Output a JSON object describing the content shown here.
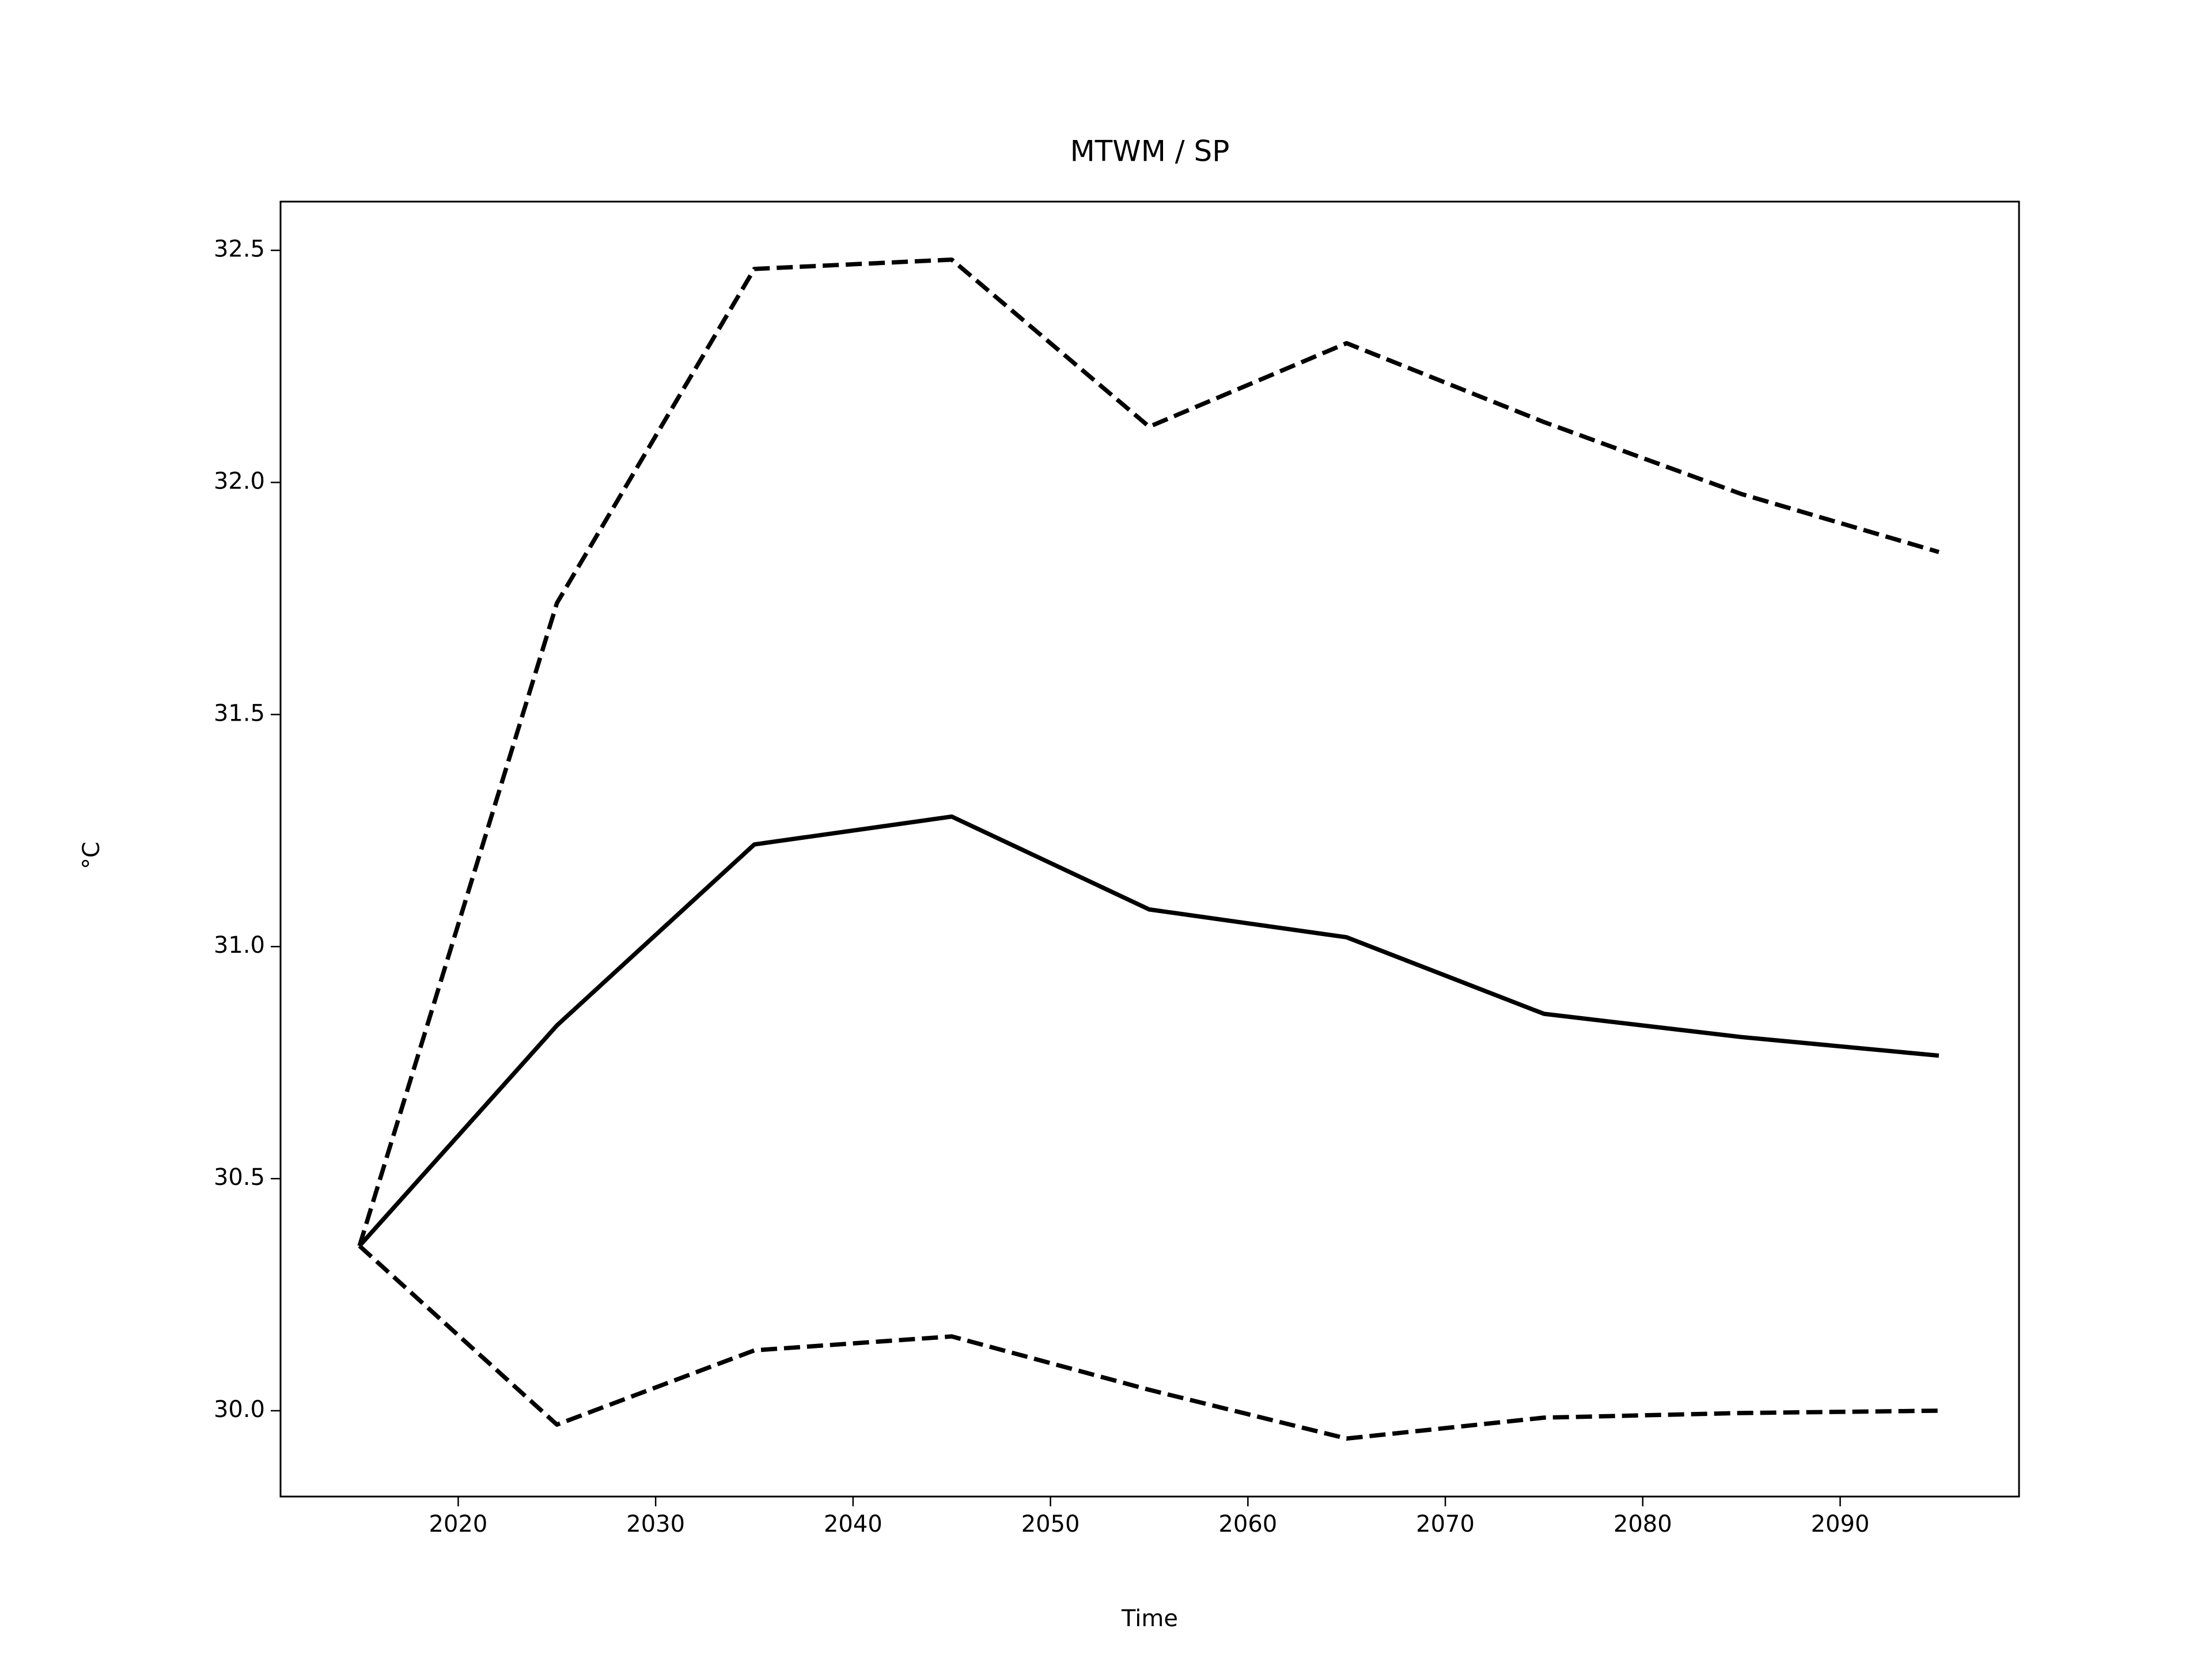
{
  "chart_data": {
    "type": "line",
    "title": "MTWM / SP",
    "xlabel": "Time",
    "ylabel": "°C",
    "x": [
      2015,
      2025,
      2035,
      2045,
      2055,
      2065,
      2075,
      2085,
      2095
    ],
    "series": [
      {
        "color": "#000000",
        "linestyle": "solid",
        "values": [
          30.355,
          30.83,
          31.22,
          31.28,
          31.08,
          31.02,
          30.855,
          30.805,
          30.765
        ]
      },
      {
        "color": "#000000",
        "linestyle": "dashed",
        "values": [
          30.355,
          31.74,
          32.46,
          32.48,
          32.12,
          32.3,
          32.13,
          31.975,
          31.85
        ]
      },
      {
        "color": "#000000",
        "linestyle": "dashed",
        "values": [
          30.355,
          29.97,
          30.13,
          30.16,
          30.045,
          29.94,
          29.985,
          29.995,
          30.0
        ]
      }
    ],
    "xlim": [
      2011.0,
      2099.06
    ],
    "xticks": [
      2020,
      2030,
      2040,
      2050,
      2060,
      2070,
      2080,
      2090
    ],
    "ylim": [
      29.815,
      32.605
    ],
    "yticks": [
      {
        "value": 30,
        "label": "30.0"
      },
      30.5,
      {
        "value": 31,
        "label": "31.0"
      },
      31.5,
      {
        "value": 32,
        "label": "32.0"
      },
      32.5
    ],
    "grid": false
  }
}
